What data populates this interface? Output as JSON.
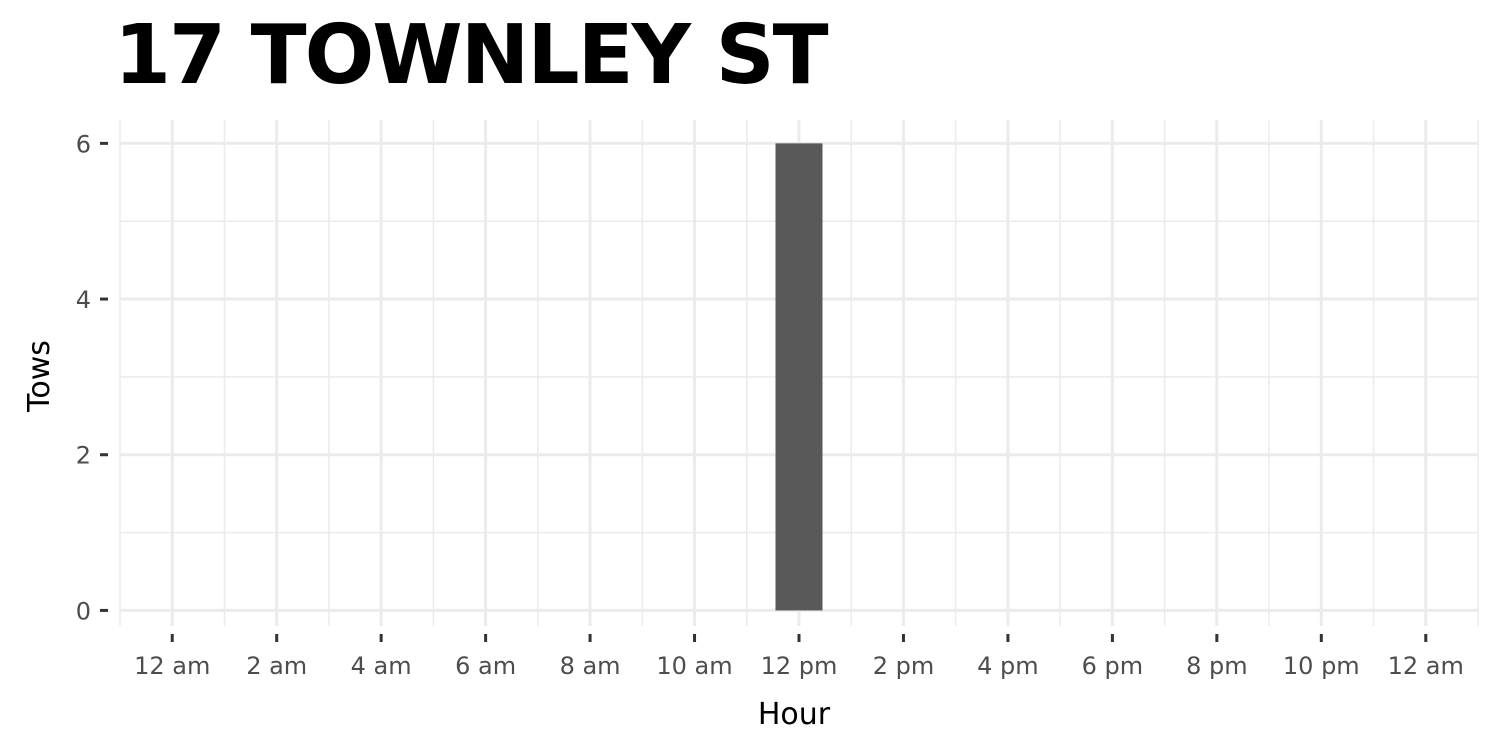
{
  "chart_data": {
    "type": "bar",
    "title": "17 TOWNLEY ST",
    "xlabel": "Hour",
    "ylabel": "Tows",
    "xlim": [
      -1,
      25
    ],
    "ylim": [
      -0.2,
      6.3
    ],
    "x_ticks": [
      {
        "value": 0,
        "label": "12 am"
      },
      {
        "value": 2,
        "label": "2 am"
      },
      {
        "value": 4,
        "label": "4 am"
      },
      {
        "value": 6,
        "label": "6 am"
      },
      {
        "value": 8,
        "label": "8 am"
      },
      {
        "value": 10,
        "label": "10 am"
      },
      {
        "value": 12,
        "label": "12 pm"
      },
      {
        "value": 14,
        "label": "2 pm"
      },
      {
        "value": 16,
        "label": "4 pm"
      },
      {
        "value": 18,
        "label": "6 pm"
      },
      {
        "value": 20,
        "label": "8 pm"
      },
      {
        "value": 22,
        "label": "10 pm"
      },
      {
        "value": 24,
        "label": "12 am"
      }
    ],
    "y_ticks": [
      0,
      2,
      4,
      6
    ],
    "bars": [
      {
        "hour": 12,
        "tows": 6
      }
    ],
    "bar_color": "#595959",
    "grid": true,
    "grid_color": "#ebebeb"
  }
}
